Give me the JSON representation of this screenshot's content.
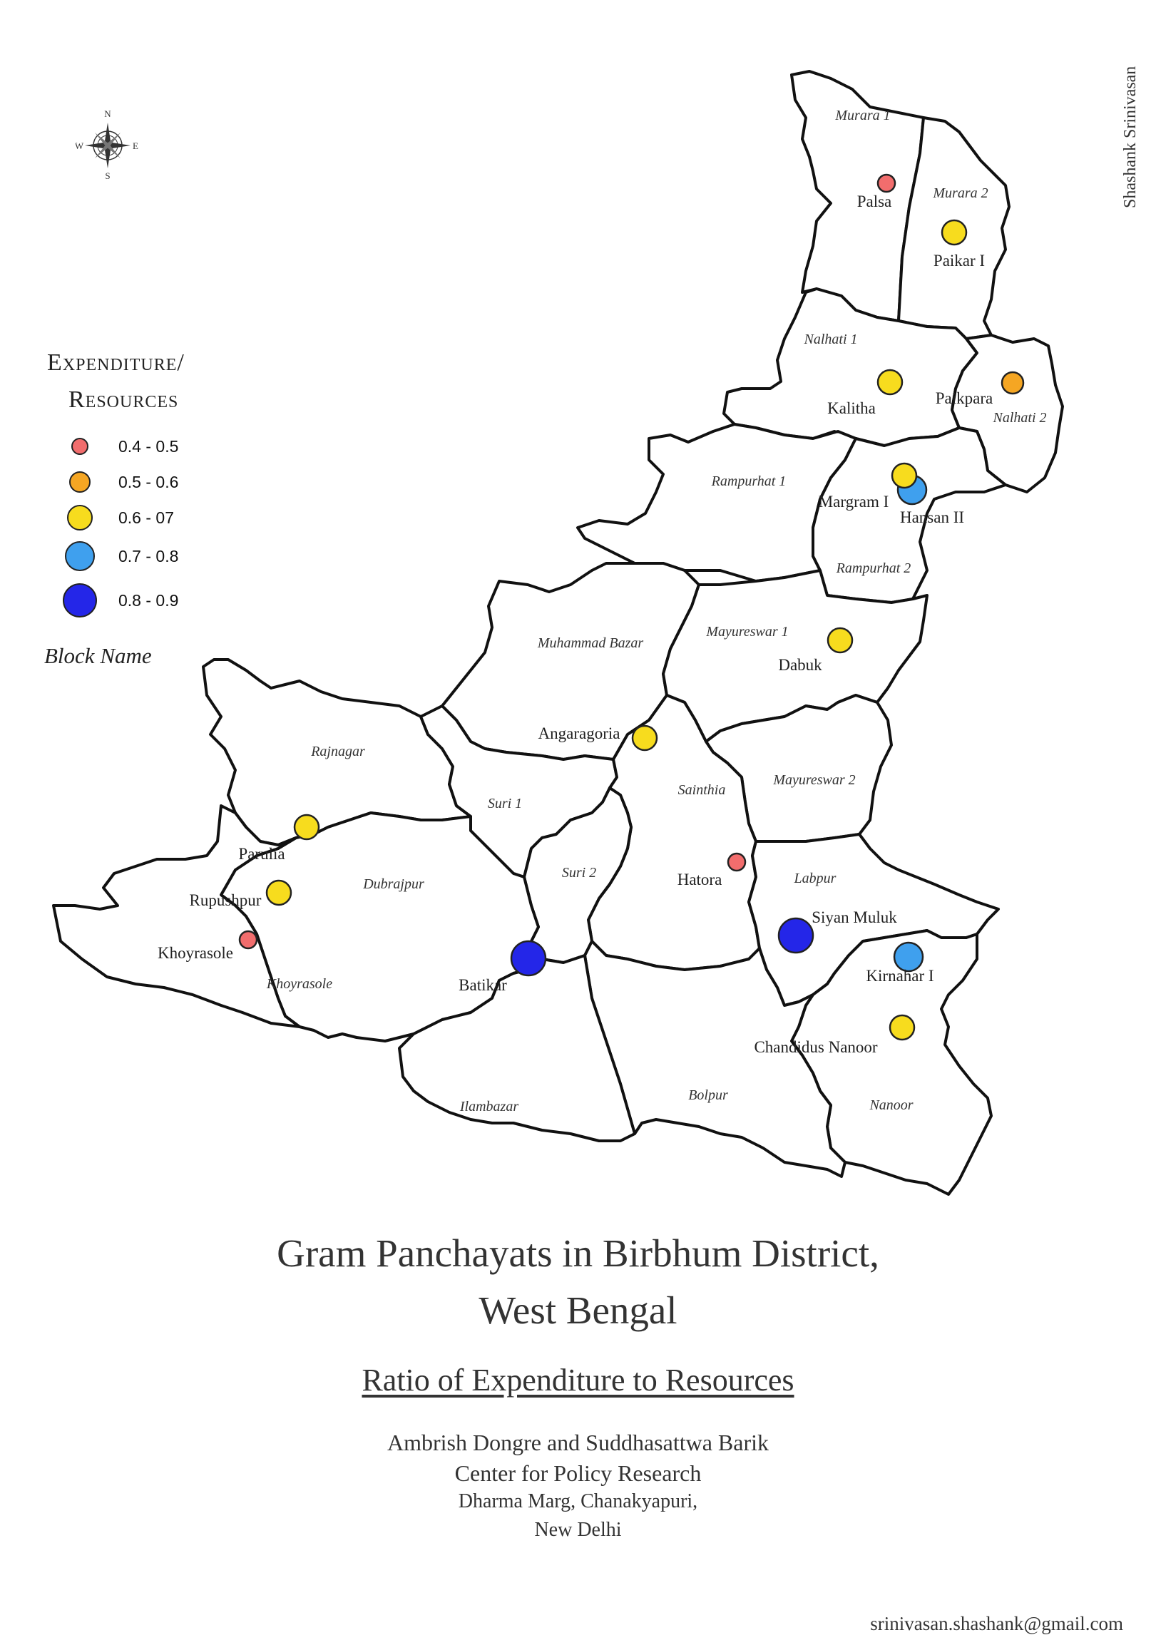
{
  "legend": {
    "title_line1": "Expenditure/",
    "title_line2": "Resources",
    "items": [
      {
        "label": "0.4 - 0.5",
        "color": "#f26d6d"
      },
      {
        "label": "0.5 - 0.6",
        "color": "#f5a623"
      },
      {
        "label": "0.6 - 07",
        "color": "#f7dc1e"
      },
      {
        "label": "0.7 - 0.8",
        "color": "#3fa0ee"
      },
      {
        "label": "0.8 - 0.9",
        "color": "#2426e8"
      }
    ],
    "block_name_key": "Block Name"
  },
  "compass": {
    "n": "N",
    "s": "S",
    "e": "E",
    "w": "W"
  },
  "blocks": {
    "murara1": "Murara 1",
    "murara2": "Murara 2",
    "nalhati1": "Nalhati 1",
    "nalhati2": "Nalhati 2",
    "rampurhat1": "Rampurhat 1",
    "rampurhat2": "Rampurhat 2",
    "muhammadbazar": "Muhammad Bazar",
    "mayureswar1": "Mayureswar 1",
    "mayureswar2": "Mayureswar 2",
    "rajnagar": "Rajnagar",
    "suri1": "Suri 1",
    "suri2": "Suri 2",
    "sainthia": "Sainthia",
    "dubrajpur": "Dubrajpur",
    "labpur": "Labpur",
    "khoyrasole": "Khoyrasole",
    "ilambazar": "Ilambazar",
    "bolpur": "Bolpur",
    "nanoor": "Nanoor"
  },
  "panchayats": {
    "palsa": "Palsa",
    "paikar": "Paikar I",
    "kalitha": "Kalitha",
    "paikpara": "Paikpara",
    "margram": "Margram I",
    "hansan": "Hansan II",
    "dabuk": "Dabuk",
    "angaragoria": "Angaragoria",
    "parulia": "Parulia",
    "rupushpur": "Rupushpur",
    "khoyrasole": "Khoyrasole",
    "batikar": "Batikar",
    "hatora": "Hatora",
    "siyanmuluk": "Siyan Muluk",
    "kirnahar": "Kirnahar I",
    "chandidas": "Chandidus Nanoor"
  },
  "title_line1": "Gram Panchayats in Birbhum District,",
  "title_line2": "West Bengal",
  "subtitle": "Ratio of Expenditure to Resources",
  "credits": {
    "authors": "Ambrish Dongre and Suddhasattwa Barik",
    "org": "Center for Policy Research",
    "address1": "Dharma Marg, Chanakyapuri,",
    "address2": "New Delhi"
  },
  "map_author": "Shashank Srinivasan",
  "email": "srinivasan.shashank@gmail.com"
}
